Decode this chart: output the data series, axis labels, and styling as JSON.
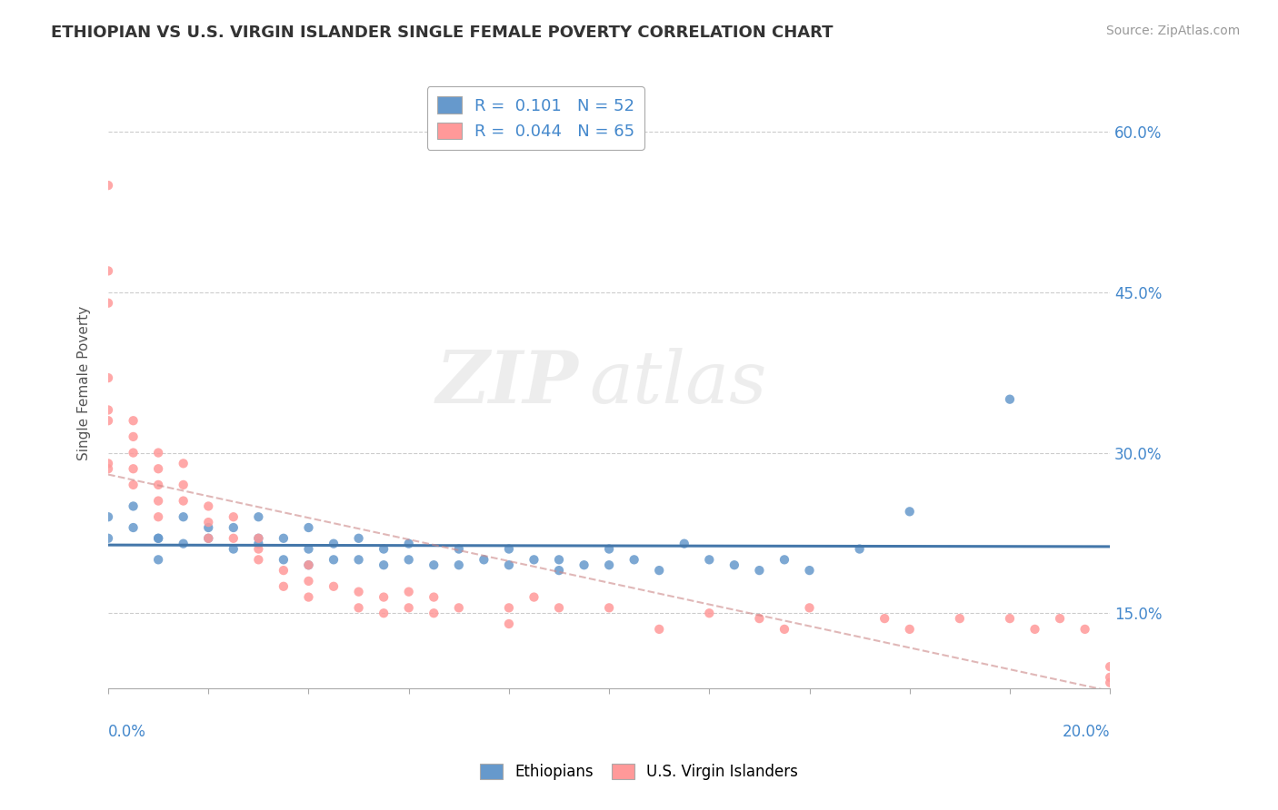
{
  "title": "ETHIOPIAN VS U.S. VIRGIN ISLANDER SINGLE FEMALE POVERTY CORRELATION CHART",
  "source": "Source: ZipAtlas.com",
  "ylabel": "Single Female Poverty",
  "yticks": [
    0.15,
    0.3,
    0.45,
    0.6
  ],
  "ytick_labels": [
    "15.0%",
    "30.0%",
    "45.0%",
    "60.0%"
  ],
  "xlim": [
    0.0,
    0.2
  ],
  "ylim": [
    0.08,
    0.65
  ],
  "legend_r_blue": "0.101",
  "legend_n_blue": "52",
  "legend_r_pink": "0.044",
  "legend_n_pink": "65",
  "blue_color": "#6699CC",
  "pink_color": "#FF9999",
  "trendline_blue_color": "#4477AA",
  "trendline_pink_color": "#CC8888",
  "background_color": "#FFFFFF",
  "grid_color": "#CCCCCC",
  "watermark_zip": "ZIP",
  "watermark_atlas": "atlas",
  "ethiopians_x": [
    0.0,
    0.0,
    0.01,
    0.005,
    0.005,
    0.01,
    0.01,
    0.015,
    0.015,
    0.02,
    0.02,
    0.025,
    0.025,
    0.03,
    0.03,
    0.03,
    0.035,
    0.035,
    0.04,
    0.04,
    0.04,
    0.045,
    0.045,
    0.05,
    0.05,
    0.055,
    0.055,
    0.06,
    0.06,
    0.065,
    0.07,
    0.07,
    0.075,
    0.08,
    0.08,
    0.085,
    0.09,
    0.09,
    0.095,
    0.1,
    0.1,
    0.105,
    0.11,
    0.115,
    0.12,
    0.125,
    0.13,
    0.135,
    0.14,
    0.15,
    0.16,
    0.18
  ],
  "ethiopians_y": [
    0.22,
    0.24,
    0.22,
    0.23,
    0.25,
    0.2,
    0.22,
    0.215,
    0.24,
    0.22,
    0.23,
    0.21,
    0.23,
    0.215,
    0.22,
    0.24,
    0.2,
    0.22,
    0.195,
    0.21,
    0.23,
    0.2,
    0.215,
    0.2,
    0.22,
    0.195,
    0.21,
    0.2,
    0.215,
    0.195,
    0.195,
    0.21,
    0.2,
    0.195,
    0.21,
    0.2,
    0.19,
    0.2,
    0.195,
    0.195,
    0.21,
    0.2,
    0.19,
    0.215,
    0.2,
    0.195,
    0.19,
    0.2,
    0.19,
    0.21,
    0.245,
    0.35
  ],
  "virgin_islanders_x": [
    0.0,
    0.0,
    0.0,
    0.0,
    0.0,
    0.0,
    0.0,
    0.0,
    0.005,
    0.005,
    0.005,
    0.005,
    0.005,
    0.01,
    0.01,
    0.01,
    0.01,
    0.01,
    0.015,
    0.015,
    0.015,
    0.02,
    0.02,
    0.02,
    0.025,
    0.025,
    0.03,
    0.03,
    0.03,
    0.035,
    0.035,
    0.04,
    0.04,
    0.04,
    0.045,
    0.05,
    0.05,
    0.055,
    0.055,
    0.06,
    0.06,
    0.065,
    0.065,
    0.07,
    0.08,
    0.08,
    0.085,
    0.09,
    0.1,
    0.11,
    0.12,
    0.13,
    0.135,
    0.14,
    0.155,
    0.16,
    0.17,
    0.18,
    0.185,
    0.19,
    0.195,
    0.2,
    0.2,
    0.2,
    0.205
  ],
  "virgin_islanders_y": [
    0.55,
    0.47,
    0.44,
    0.37,
    0.34,
    0.33,
    0.29,
    0.285,
    0.33,
    0.315,
    0.3,
    0.285,
    0.27,
    0.3,
    0.285,
    0.27,
    0.255,
    0.24,
    0.29,
    0.27,
    0.255,
    0.25,
    0.235,
    0.22,
    0.24,
    0.22,
    0.22,
    0.21,
    0.2,
    0.19,
    0.175,
    0.195,
    0.18,
    0.165,
    0.175,
    0.17,
    0.155,
    0.165,
    0.15,
    0.17,
    0.155,
    0.165,
    0.15,
    0.155,
    0.155,
    0.14,
    0.165,
    0.155,
    0.155,
    0.135,
    0.15,
    0.145,
    0.135,
    0.155,
    0.145,
    0.135,
    0.145,
    0.145,
    0.135,
    0.145,
    0.135,
    0.1,
    0.09,
    0.085,
    0.13
  ]
}
